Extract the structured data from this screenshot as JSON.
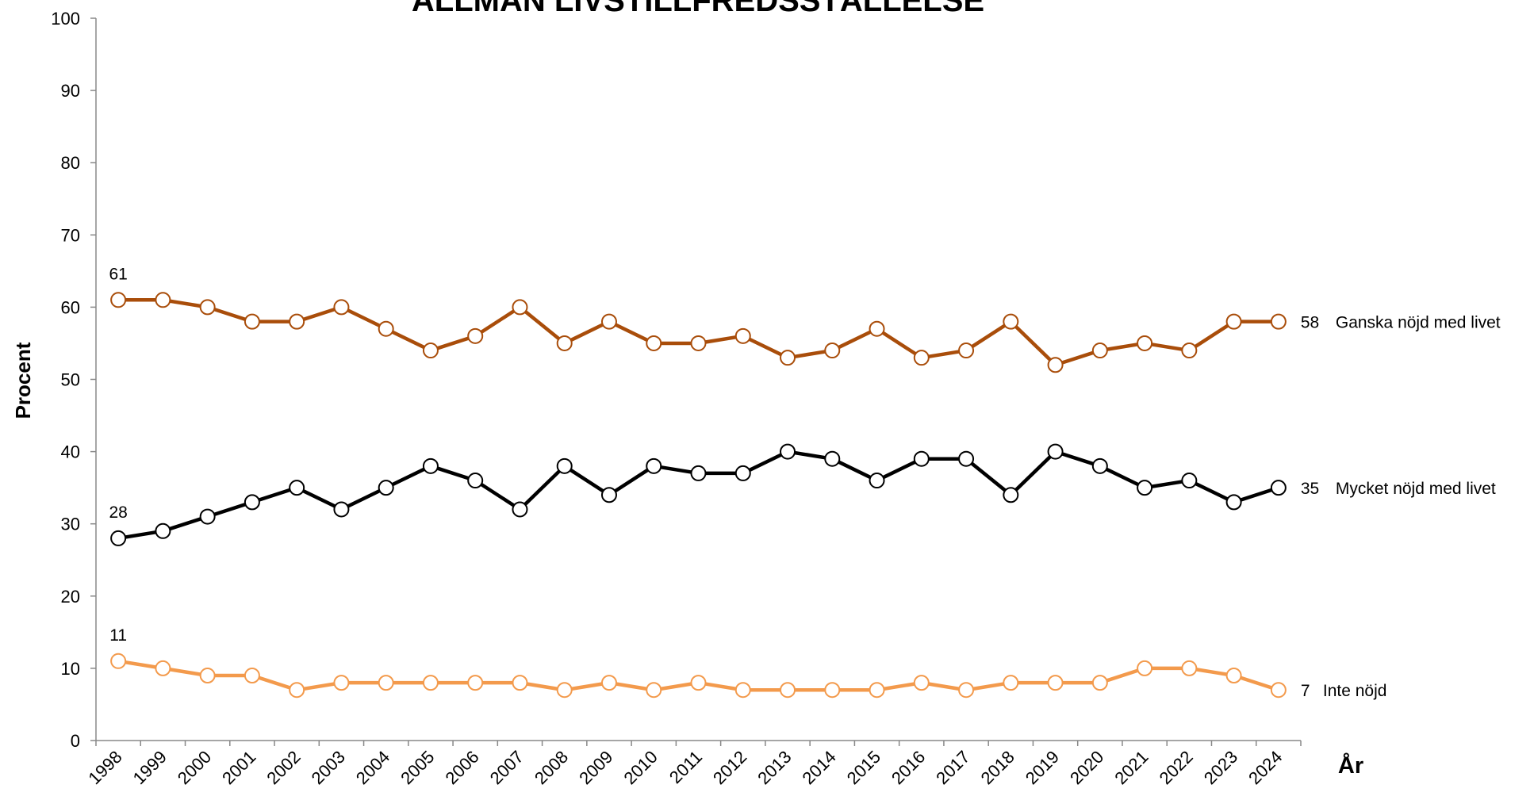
{
  "chart_data": {
    "type": "line",
    "title": "ALLMÄN LIVSTILLFREDSSTÄLLELSE",
    "y_label": "Procent",
    "x_label": "År",
    "categories": [
      "1998",
      "1999",
      "2000",
      "2001",
      "2002",
      "2003",
      "2004",
      "2005",
      "2006",
      "2007",
      "2008",
      "2009",
      "2010",
      "2011",
      "2012",
      "2013",
      "2014",
      "2015",
      "2016",
      "2017",
      "2018",
      "2019",
      "2020",
      "2021",
      "2022",
      "2023",
      "2024"
    ],
    "series": [
      {
        "name": "Ganska nöjd med livet",
        "color": "#a94d0a",
        "values": [
          61,
          61,
          60,
          58,
          58,
          60,
          57,
          54,
          56,
          60,
          55,
          58,
          55,
          55,
          56,
          53,
          54,
          57,
          53,
          54,
          58,
          52,
          54,
          55,
          54,
          58,
          58
        ]
      },
      {
        "name": "Mycket nöjd med livet",
        "color": "#000000",
        "values": [
          28,
          29,
          31,
          33,
          35,
          32,
          35,
          38,
          36,
          32,
          38,
          34,
          38,
          37,
          37,
          40,
          39,
          36,
          39,
          39,
          34,
          40,
          38,
          35,
          36,
          33,
          35
        ]
      },
      {
        "name": "Inte nöjd",
        "color": "#f39a4c",
        "values": [
          11,
          10,
          9,
          9,
          7,
          8,
          8,
          8,
          8,
          8,
          7,
          8,
          7,
          8,
          7,
          7,
          7,
          7,
          8,
          7,
          8,
          8,
          8,
          10,
          10,
          9,
          7
        ]
      }
    ],
    "ylim": [
      0,
      100
    ],
    "yticks": [
      0,
      10,
      20,
      30,
      40,
      50,
      60,
      70,
      80,
      90,
      100
    ],
    "grid": false
  }
}
